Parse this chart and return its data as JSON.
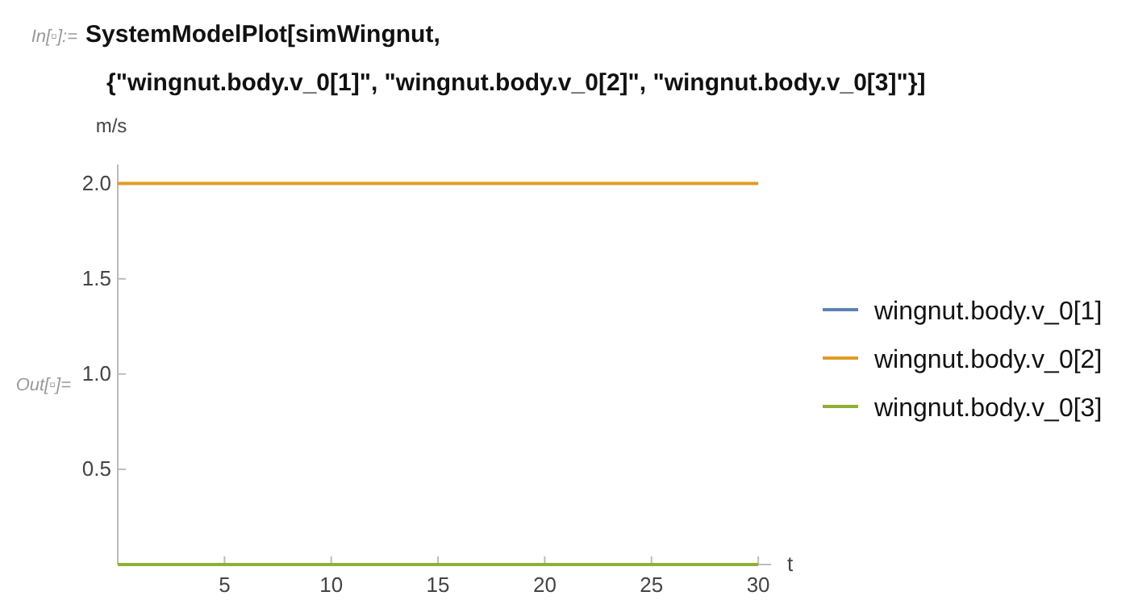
{
  "chart_data": {
    "type": "line",
    "title": "SystemModelPlot[simWingnut,\n{\"wingnut.body.v_0[1]\", \"wingnut.body.v_0[2]\", \"wingnut.body.v_0[3]\"}]",
    "xlabel": "t",
    "ylabel": "m/s",
    "annotations": [
      "In[▫]:=",
      "Out[▫]="
    ],
    "xlim": [
      0,
      30.6
    ],
    "ylim": [
      0,
      2.1
    ],
    "xticks": [
      5,
      10,
      15,
      20,
      25,
      30
    ],
    "yticks": [
      {
        "value": 0.5,
        "label": "0.5"
      },
      {
        "value": 1,
        "label": "1.0"
      },
      {
        "value": 1.5,
        "label": "1.5"
      },
      {
        "value": 2,
        "label": "2.0"
      }
    ],
    "x": [
      0,
      30
    ],
    "legend": "right",
    "line_style": "solid",
    "marker": "none",
    "grid": false,
    "series": [
      {
        "name": "wingnut.body.v_0[1]",
        "color": "#5e81b5",
        "values": [
          null,
          null
        ]
      },
      {
        "name": "wingnut.body.v_0[2]",
        "color": "#e19c24",
        "values": [
          2,
          2
        ]
      },
      {
        "name": "wingnut.body.v_0[3]",
        "color": "#8fb032",
        "values": [
          0,
          0
        ]
      }
    ]
  }
}
